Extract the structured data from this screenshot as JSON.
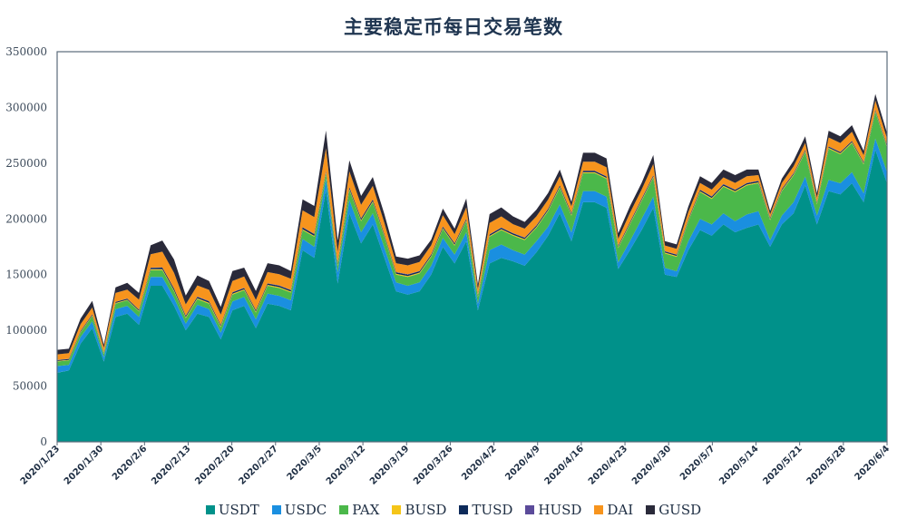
{
  "chart_data": {
    "type": "area",
    "stacked": true,
    "title": "主要稳定币每日交易笔数",
    "xlabel": "",
    "ylabel": "",
    "ylim": [
      0,
      350000
    ],
    "yticks": [
      0,
      50000,
      100000,
      150000,
      200000,
      250000,
      300000,
      350000
    ],
    "xticks": [
      "2020/1/23",
      "2020/1/30",
      "2020/2/6",
      "2020/2/13",
      "2020/2/20",
      "2020/2/27",
      "2020/3/5",
      "2020/3/12",
      "2020/3/19",
      "2020/3/26",
      "2020/4/2",
      "2020/4/9",
      "2020/4/16",
      "2020/4/23",
      "2020/4/30",
      "2020/5/7",
      "2020/5/14",
      "2020/5/21",
      "2020/5/28",
      "2020/6/4"
    ],
    "grid": false,
    "legend_position": "bottom",
    "x_start": "2020/1/23",
    "x_end": "2020/6/4",
    "x_step_days": 2,
    "series": [
      {
        "name": "USDT",
        "color": "#00918a",
        "values": [
          62000,
          64000,
          88000,
          102000,
          72000,
          112000,
          115000,
          105000,
          140000,
          140000,
          122000,
          100000,
          115000,
          112000,
          92000,
          118000,
          122000,
          102000,
          124000,
          122000,
          118000,
          172000,
          165000,
          226000,
          142000,
          205000,
          178000,
          195000,
          165000,
          135000,
          132000,
          135000,
          150000,
          175000,
          160000,
          180000,
          118000,
          160000,
          165000,
          162000,
          158000,
          170000,
          185000,
          205000,
          180000,
          215000,
          215000,
          210000,
          155000,
          172000,
          190000,
          210000,
          150000,
          148000,
          172000,
          190000,
          185000,
          195000,
          188000,
          192000,
          195000,
          175000,
          195000,
          205000,
          230000,
          195000,
          225000,
          222000,
          232000,
          215000,
          262000,
          232000
        ]
      },
      {
        "name": "USDC",
        "color": "#1a8fe0",
        "values": [
          6000,
          5000,
          6000,
          6000,
          4000,
          7000,
          7000,
          7000,
          8000,
          8000,
          7000,
          6000,
          8000,
          7000,
          6000,
          8000,
          8000,
          8000,
          9000,
          9000,
          9000,
          10000,
          10000,
          10000,
          10000,
          12000,
          10000,
          10000,
          9000,
          8000,
          8000,
          8000,
          8000,
          8000,
          8000,
          8000,
          6000,
          12000,
          12000,
          10000,
          10000,
          10000,
          8000,
          8000,
          8000,
          10000,
          10000,
          10000,
          6000,
          8000,
          10000,
          10000,
          6000,
          5000,
          8000,
          10000,
          10000,
          10000,
          10000,
          12000,
          12000,
          6000,
          8000,
          10000,
          8000,
          8000,
          10000,
          10000,
          10000,
          8000,
          10000,
          10000
        ]
      },
      {
        "name": "PAX",
        "color": "#4bb84a",
        "values": [
          4000,
          4000,
          4000,
          5000,
          3000,
          5000,
          5000,
          5000,
          6000,
          6000,
          6000,
          5000,
          5000,
          5000,
          5000,
          6000,
          6000,
          6000,
          7000,
          7000,
          7000,
          8000,
          9000,
          5000,
          6000,
          9000,
          10000,
          10000,
          10000,
          7000,
          8000,
          8000,
          8000,
          8000,
          8000,
          10000,
          6000,
          12000,
          13000,
          13000,
          13000,
          12000,
          14000,
          15000,
          15000,
          16000,
          16000,
          16000,
          13000,
          15000,
          16000,
          17000,
          13000,
          13000,
          18000,
          24000,
          23000,
          24000,
          26000,
          26000,
          25000,
          18000,
          22000,
          24000,
          22000,
          10000,
          28000,
          26000,
          26000,
          26000,
          24000,
          22000
        ]
      },
      {
        "name": "BUSD",
        "color": "#f5c518",
        "values": [
          500,
          500,
          500,
          500,
          500,
          500,
          500,
          500,
          800,
          800,
          800,
          800,
          800,
          800,
          800,
          800,
          800,
          800,
          800,
          800,
          800,
          800,
          800,
          800,
          800,
          800,
          800,
          800,
          800,
          800,
          800,
          800,
          800,
          800,
          800,
          800,
          800,
          800,
          800,
          800,
          800,
          800,
          800,
          800,
          800,
          800,
          800,
          800,
          800,
          800,
          800,
          800,
          800,
          800,
          800,
          800,
          800,
          800,
          800,
          800,
          800,
          800,
          800,
          800,
          800,
          800,
          800,
          800,
          800,
          800,
          800,
          800
        ]
      },
      {
        "name": "TUSD",
        "color": "#0d2a5a",
        "values": [
          800,
          800,
          800,
          800,
          600,
          900,
          900,
          900,
          1200,
          1500,
          1500,
          1200,
          1200,
          1200,
          1000,
          1200,
          1200,
          1200,
          1200,
          1200,
          1200,
          1500,
          1500,
          1200,
          1500,
          1500,
          1500,
          1500,
          1200,
          1200,
          1200,
          1200,
          1200,
          1200,
          1200,
          1200,
          1000,
          1200,
          1200,
          1200,
          1200,
          1200,
          1200,
          1200,
          1200,
          1200,
          1200,
          1200,
          1000,
          1200,
          1200,
          1200,
          1000,
          1000,
          1000,
          1200,
          1200,
          1200,
          1200,
          1200,
          1200,
          1000,
          1000,
          1000,
          1000,
          1000,
          1000,
          1000,
          1000,
          1000,
          1000,
          1000
        ]
      },
      {
        "name": "HUSD",
        "color": "#5b4b9a",
        "values": [
          200,
          200,
          200,
          200,
          200,
          200,
          200,
          200,
          300,
          300,
          300,
          300,
          300,
          300,
          300,
          300,
          300,
          300,
          300,
          300,
          300,
          300,
          300,
          300,
          300,
          300,
          300,
          300,
          300,
          300,
          300,
          300,
          300,
          300,
          300,
          300,
          300,
          300,
          300,
          300,
          300,
          300,
          300,
          300,
          300,
          300,
          300,
          300,
          300,
          300,
          300,
          300,
          300,
          300,
          300,
          300,
          300,
          300,
          300,
          300,
          300,
          300,
          300,
          300,
          300,
          300,
          300,
          300,
          300,
          300,
          300,
          300
        ]
      },
      {
        "name": "DAI",
        "color": "#f7941d",
        "values": [
          5000,
          5000,
          6000,
          6000,
          4000,
          8000,
          8000,
          9000,
          12000,
          14000,
          14000,
          10000,
          10000,
          10000,
          9000,
          10000,
          10000,
          9000,
          10000,
          10000,
          10000,
          15000,
          15000,
          20000,
          10000,
          14000,
          12000,
          12000,
          10000,
          8000,
          8000,
          8000,
          8000,
          10000,
          8000,
          10000,
          5000,
          10000,
          10000,
          8000,
          8000,
          8000,
          8000,
          8000,
          6000,
          8000,
          8000,
          8000,
          6000,
          8000,
          8000,
          10000,
          5000,
          5000,
          6000,
          6000,
          6000,
          6000,
          6000,
          6000,
          5000,
          3000,
          5000,
          6000,
          6000,
          4000,
          8000,
          8000,
          8000,
          6000,
          8000,
          6000
        ]
      },
      {
        "name": "GUSD",
        "color": "#2a2a3a",
        "values": [
          4000,
          4000,
          5000,
          6000,
          3000,
          5000,
          6000,
          6000,
          8000,
          10000,
          12000,
          8000,
          9000,
          8000,
          7000,
          9000,
          8000,
          8000,
          8000,
          8000,
          7000,
          10000,
          10000,
          16000,
          10000,
          10000,
          8000,
          8000,
          8000,
          6000,
          6000,
          6000,
          5000,
          6000,
          5000,
          8000,
          4000,
          8000,
          8000,
          7000,
          6000,
          6000,
          6000,
          6000,
          4000,
          8000,
          8000,
          8000,
          5000,
          6000,
          6000,
          8000,
          4000,
          4000,
          5000,
          6000,
          6000,
          7000,
          7000,
          6000,
          5000,
          3000,
          4000,
          5000,
          6000,
          4000,
          6000,
          6000,
          6000,
          4000,
          6000,
          5000
        ]
      }
    ]
  },
  "legend": [
    {
      "label": "USDT",
      "color": "#00918a"
    },
    {
      "label": "USDC",
      "color": "#1a8fe0"
    },
    {
      "label": "PAX",
      "color": "#4bb84a"
    },
    {
      "label": "BUSD",
      "color": "#f5c518"
    },
    {
      "label": "TUSD",
      "color": "#0d2a5a"
    },
    {
      "label": "HUSD",
      "color": "#5b4b9a"
    },
    {
      "label": "DAI",
      "color": "#f7941d"
    },
    {
      "label": "GUSD",
      "color": "#2a2a3a"
    }
  ]
}
